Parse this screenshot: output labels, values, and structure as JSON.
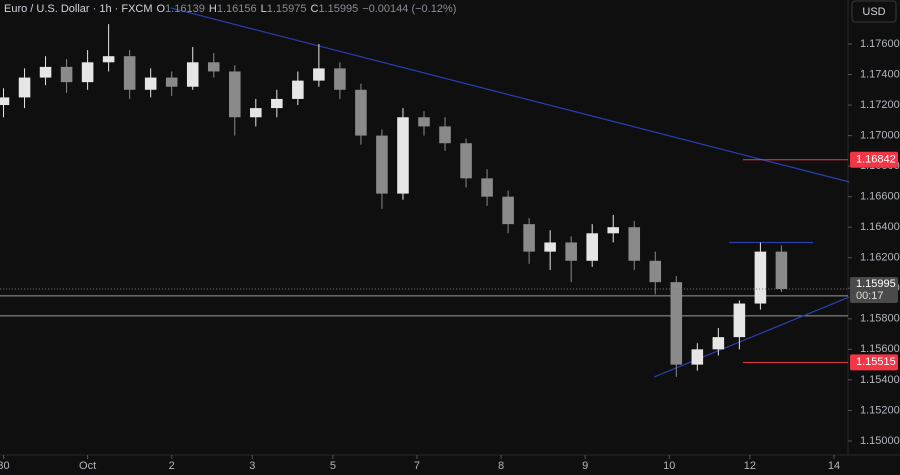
{
  "chart_data": {
    "type": "candlestick",
    "symbol": "Euro / U.S. Dollar · 1h · FXCM",
    "ohlc_legend": [
      {
        "key": "O",
        "value": "1.16139"
      },
      {
        "key": "H",
        "value": "1.16156"
      },
      {
        "key": "L",
        "value": "1.15975"
      },
      {
        "key": "C",
        "value": "1.15995"
      }
    ],
    "change": "−0.00144 (−0.12%)",
    "currency": "USD",
    "up_color": "#e6e6e6",
    "down_color": "#8a8a8a",
    "x": [
      0,
      6,
      12,
      18,
      24,
      30,
      36,
      42,
      48,
      54,
      60,
      66,
      72,
      78,
      84,
      90,
      96,
      102,
      108,
      114,
      120,
      126,
      132,
      138,
      144,
      150,
      156,
      162,
      168,
      174,
      180,
      186,
      192,
      198,
      204,
      210,
      216,
      222
    ],
    "open": [
      1.172,
      1.1725,
      1.1738,
      1.1745,
      1.1735,
      1.1748,
      1.1752,
      1.173,
      1.1738,
      1.1732,
      1.1748,
      1.1742,
      1.1712,
      1.1718,
      1.1724,
      1.1736,
      1.1744,
      1.173,
      1.17,
      1.1662,
      1.1712,
      1.1706,
      1.1695,
      1.1672,
      1.166,
      1.1642,
      1.1624,
      1.163,
      1.1618,
      1.1636,
      1.164,
      1.1618,
      1.1604,
      1.155,
      1.156,
      1.1568,
      1.159,
      1.1624
    ],
    "high": [
      1.1731,
      1.1744,
      1.1752,
      1.175,
      1.1756,
      1.1773,
      1.1756,
      1.1744,
      1.1742,
      1.1758,
      1.1754,
      1.1746,
      1.1724,
      1.173,
      1.1742,
      1.176,
      1.1748,
      1.1734,
      1.1704,
      1.1718,
      1.1716,
      1.1712,
      1.1698,
      1.1678,
      1.1664,
      1.1646,
      1.1638,
      1.1634,
      1.1642,
      1.1648,
      1.1644,
      1.1624,
      1.1608,
      1.1564,
      1.1574,
      1.1592,
      1.163,
      1.1628
    ],
    "low": [
      1.1712,
      1.1718,
      1.1733,
      1.1728,
      1.173,
      1.1742,
      1.1724,
      1.1725,
      1.1726,
      1.173,
      1.1738,
      1.17,
      1.1706,
      1.1712,
      1.172,
      1.1732,
      1.1724,
      1.1694,
      1.1652,
      1.1658,
      1.17,
      1.169,
      1.1666,
      1.1654,
      1.1636,
      1.1616,
      1.1612,
      1.1604,
      1.1614,
      1.163,
      1.1612,
      1.1596,
      1.1542,
      1.1546,
      1.1556,
      1.156,
      1.1586,
      1.15975
    ],
    "close": [
      1.1725,
      1.1738,
      1.1745,
      1.1735,
      1.1748,
      1.1752,
      1.173,
      1.1738,
      1.1732,
      1.1748,
      1.1742,
      1.1712,
      1.1718,
      1.1724,
      1.1736,
      1.1744,
      1.173,
      1.17,
      1.1662,
      1.1712,
      1.1706,
      1.1695,
      1.1672,
      1.166,
      1.1642,
      1.1624,
      1.163,
      1.1618,
      1.1636,
      1.164,
      1.1618,
      1.1604,
      1.155,
      1.156,
      1.1568,
      1.159,
      1.1624,
      1.15995
    ],
    "xlim": [
      -1,
      241
    ],
    "xticks": [
      {
        "value": 0,
        "label": "30"
      },
      {
        "value": 24,
        "label": "Oct"
      },
      {
        "value": 48,
        "label": "2"
      },
      {
        "value": 71,
        "label": "3"
      },
      {
        "value": 94,
        "label": "5"
      },
      {
        "value": 118,
        "label": "7"
      },
      {
        "value": 142,
        "label": "8"
      },
      {
        "value": 166,
        "label": "9"
      },
      {
        "value": 190,
        "label": "10"
      },
      {
        "value": 213,
        "label": "12"
      },
      {
        "value": 237,
        "label": "14"
      }
    ],
    "ylim": [
      1.14908,
      1.17888
    ],
    "yticks": [
      {
        "value": 1.15,
        "label": "1.15000"
      },
      {
        "value": 1.152,
        "label": "1.15200"
      },
      {
        "value": 1.154,
        "label": "1.15400"
      },
      {
        "value": 1.156,
        "label": "1.15600"
      },
      {
        "value": 1.158,
        "label": "1.15800"
      },
      {
        "value": 1.16,
        "label": "1.16000"
      },
      {
        "value": 1.162,
        "label": "1.16200"
      },
      {
        "value": 1.164,
        "label": "1.16400"
      },
      {
        "value": 1.166,
        "label": "1.16600"
      },
      {
        "value": 1.168,
        "label": "1.16800"
      },
      {
        "value": 1.17,
        "label": "1.17000"
      },
      {
        "value": 1.172,
        "label": "1.17200"
      },
      {
        "value": 1.174,
        "label": "1.17400"
      },
      {
        "value": 1.176,
        "label": "1.17600"
      }
    ],
    "zone": {
      "low": 1.15819,
      "high": 1.1595,
      "color": "#9a9a9a"
    },
    "trendlines": [
      {
        "x": [
          47.7,
          241.4
        ],
        "y": [
          1.17836,
          1.16696
        ],
        "color": "#2a3fb0"
      },
      {
        "x": [
          185.7,
          241.4
        ],
        "y": [
          1.15419,
          1.15943
        ],
        "color": "#2a3fb0"
      },
      {
        "x": [
          207,
          231
        ],
        "y": [
          1.163,
          1.163
        ],
        "color": "#2a3fb0"
      }
    ],
    "levels": [
      {
        "value": 1.16842,
        "label": "1.16842",
        "from": 211,
        "color": "#f23645"
      },
      {
        "value": 1.15515,
        "label": "1.15515",
        "from": 211,
        "color": "#f23645"
      }
    ],
    "last_price": {
      "value": 1.15995,
      "label": "1.15995",
      "countdown": "00:17",
      "color": "#4a4a4a"
    }
  }
}
